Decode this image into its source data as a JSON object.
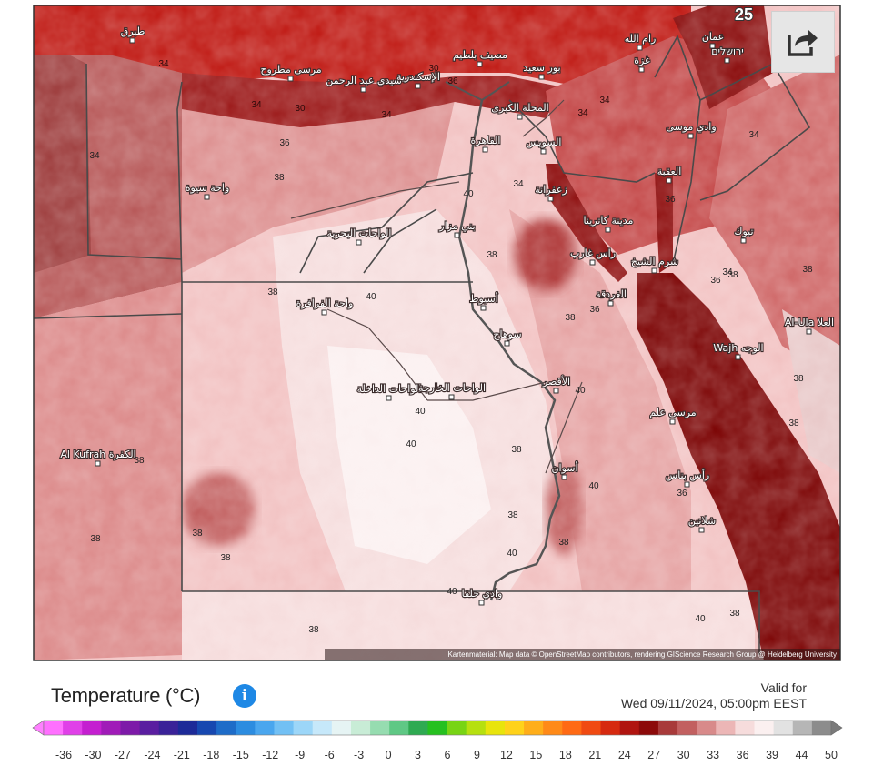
{
  "map": {
    "attribution": "Kartenmaterial: Map data © OpenStreetMap contributors, rendering GIScience Research Group @ Heidelberg University",
    "corner_value": "25",
    "places": [
      {
        "name": "طبرق"
      },
      {
        "name": "مرسى مطروح"
      },
      {
        "name": "سيدي عبد الرحمن"
      },
      {
        "name": "الإسكندرية"
      },
      {
        "name": "مصيف بلطيم"
      },
      {
        "name": "بور سعيد"
      },
      {
        "name": "غزة"
      },
      {
        "name": "رام الله"
      },
      {
        "name": "عمان"
      },
      {
        "name": "ירושלים"
      },
      {
        "name": "المحلة الكبرى"
      },
      {
        "name": "القاهرة"
      },
      {
        "name": "السويس"
      },
      {
        "name": "وادي موسى"
      },
      {
        "name": "واحة سيوة"
      },
      {
        "name": "العقبة"
      },
      {
        "name": "زعفرانة"
      },
      {
        "name": "مدينة كاترينا"
      },
      {
        "name": "الواحات البحرية"
      },
      {
        "name": "بني مزار"
      },
      {
        "name": "تبوك"
      },
      {
        "name": "راس غارب"
      },
      {
        "name": "شرم الشيخ"
      },
      {
        "name": "الغردقة"
      },
      {
        "name": "أسيوط"
      },
      {
        "name": "واحة الفرافرة"
      },
      {
        "name": "Al-Ula العلا"
      },
      {
        "name": "سوهاج"
      },
      {
        "name": "Wajh الوجه"
      },
      {
        "name": "الأقصر"
      },
      {
        "name": "الواحات الداخلة"
      },
      {
        "name": "الواحات الخارجة"
      },
      {
        "name": "مرسى علم"
      },
      {
        "name": "Al Kufrah الكفرة"
      },
      {
        "name": "أسوان"
      },
      {
        "name": "رأس بناس"
      },
      {
        "name": "شلاتين"
      },
      {
        "name": "وادي حلفا"
      }
    ],
    "isotherm_labels": [
      {
        "v": "34"
      },
      {
        "v": "34"
      },
      {
        "v": "34"
      },
      {
        "v": "30"
      },
      {
        "v": "30"
      },
      {
        "v": "36"
      },
      {
        "v": "34"
      },
      {
        "v": "38"
      },
      {
        "v": "36"
      },
      {
        "v": "38"
      },
      {
        "v": "34"
      },
      {
        "v": "34"
      },
      {
        "v": "34"
      },
      {
        "v": "36"
      },
      {
        "v": "34"
      },
      {
        "v": "34"
      },
      {
        "v": "40"
      },
      {
        "v": "38"
      },
      {
        "v": "38"
      },
      {
        "v": "40"
      },
      {
        "v": "38"
      },
      {
        "v": "38"
      },
      {
        "v": "36"
      },
      {
        "v": "38"
      },
      {
        "v": "40"
      },
      {
        "v": "40"
      },
      {
        "v": "38"
      },
      {
        "v": "38"
      },
      {
        "v": "38"
      },
      {
        "v": "40"
      },
      {
        "v": "38"
      },
      {
        "v": "36"
      },
      {
        "v": "38"
      },
      {
        "v": "38"
      },
      {
        "v": "40"
      },
      {
        "v": "38"
      },
      {
        "v": "38"
      },
      {
        "v": "40"
      },
      {
        "v": "40"
      },
      {
        "v": "40"
      },
      {
        "v": "38"
      },
      {
        "v": "38"
      },
      {
        "v": "36"
      }
    ]
  },
  "legend": {
    "title": "Temperature (°C)",
    "info_icon": "info-icon",
    "share_icon": "share-icon",
    "valid_label": "Valid for",
    "valid_time": "Wed 09/11/2024, 05:00pm EEST",
    "ticks": [
      "-36",
      "-30",
      "-27",
      "-24",
      "-21",
      "-18",
      "-15",
      "-12",
      "-9",
      "-6",
      "-3",
      "0",
      "3",
      "6",
      "9",
      "12",
      "15",
      "18",
      "21",
      "24",
      "27",
      "30",
      "33",
      "36",
      "39",
      "44",
      "50"
    ],
    "colors": [
      "#ff70ff",
      "#e040e8",
      "#c41fd0",
      "#a01bb8",
      "#7d1aa8",
      "#5a1ea0",
      "#3a2298",
      "#1d2a98",
      "#1748b0",
      "#1e6cc8",
      "#2c8ce0",
      "#4aa6ee",
      "#72c0f4",
      "#9cd6f8",
      "#c6e8fa",
      "#e6f4f4",
      "#c8ecd6",
      "#96dcb0",
      "#5fc885",
      "#2faa52",
      "#26c020",
      "#78d414",
      "#b6e010",
      "#e8e40c",
      "#ffd21a",
      "#ffae1a",
      "#ff8a18",
      "#ff6a14",
      "#f04a12",
      "#d62a10",
      "#b01410",
      "#8c0a0a",
      "#a83a3a",
      "#c26060",
      "#d88a8a",
      "#ecb6b6",
      "#f6dcdc",
      "#fbf0f0",
      "#e2e2e2",
      "#b6b6b6",
      "#8c8c8c"
    ]
  }
}
